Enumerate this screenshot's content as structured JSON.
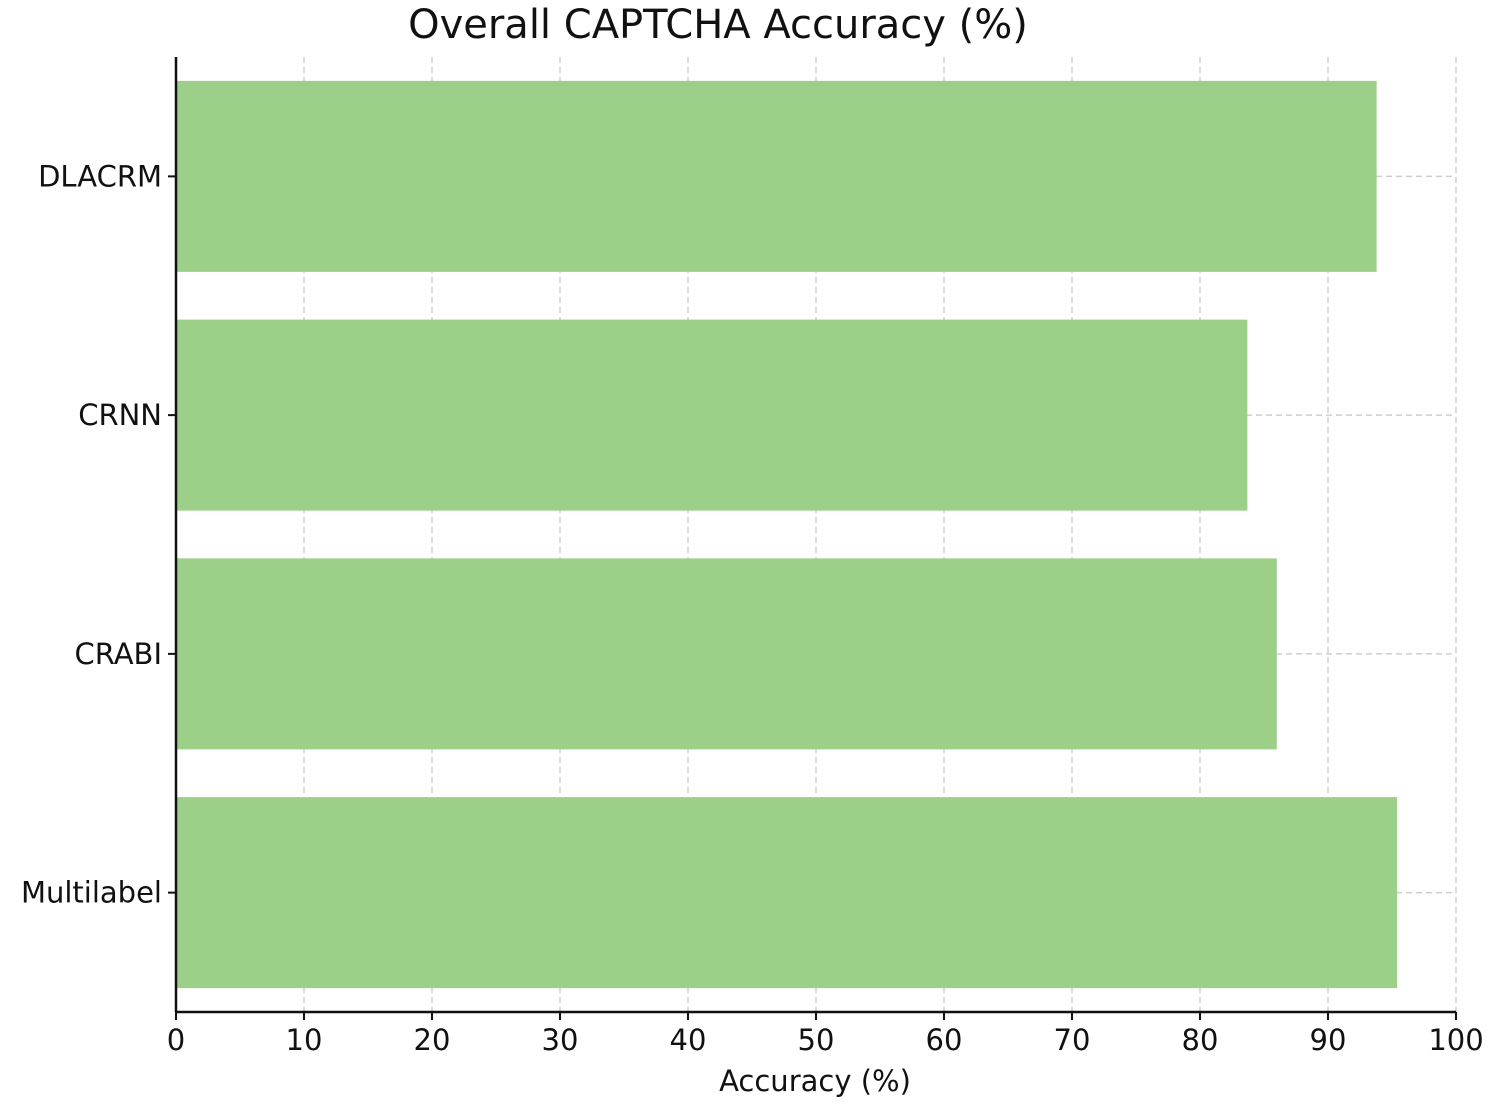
{
  "chart_data": {
    "type": "bar",
    "orientation": "horizontal",
    "title": "Overall CAPTCHA Accuracy (%)",
    "xlabel": "Accuracy (%)",
    "ylabel": "",
    "categories": [
      "DLACRM",
      "CRNN",
      "CRABI",
      "Multilabel"
    ],
    "values": [
      93.8,
      83.7,
      86.0,
      95.4
    ],
    "xlim": [
      0,
      100
    ],
    "xticks": [
      0,
      10,
      20,
      30,
      40,
      50,
      60,
      70,
      80,
      90,
      100
    ],
    "grid": true,
    "bar_color": "#9ccf88"
  }
}
